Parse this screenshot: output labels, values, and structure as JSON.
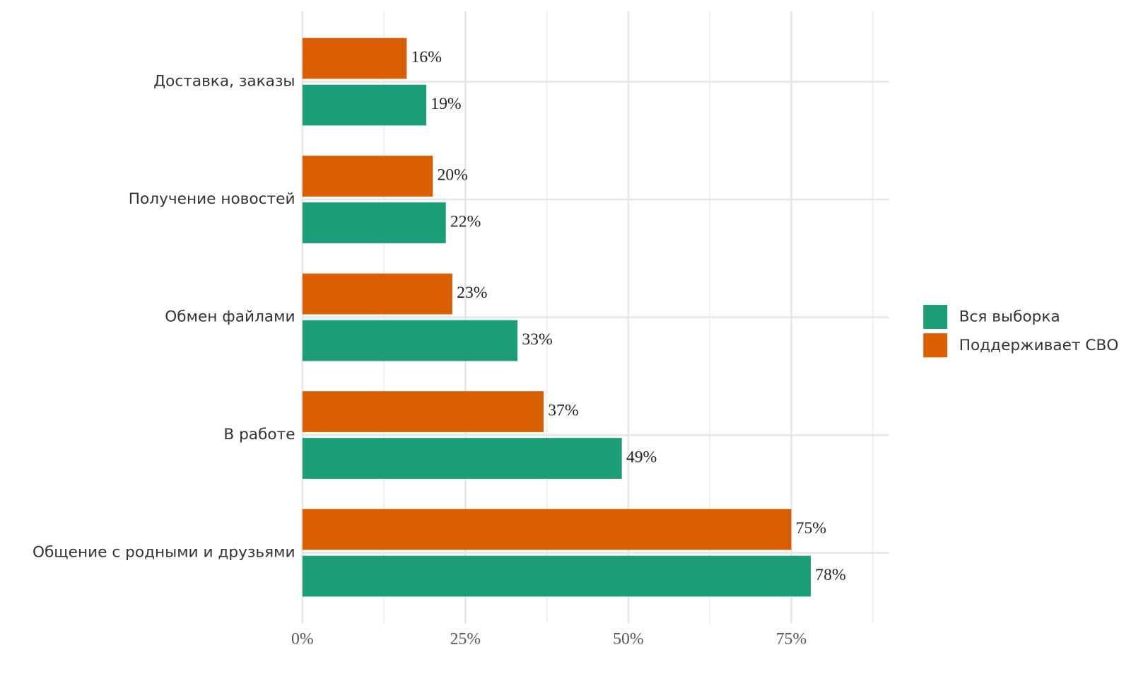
{
  "chart_data": {
    "type": "bar",
    "orientation": "horizontal",
    "categories": [
      "Доставка, заказы",
      "Получение новостей",
      "Обмен файлами",
      "В работе",
      "Общение с родными и друзьями"
    ],
    "series": [
      {
        "name": "Поддерживает СВО",
        "color": "#d95f02",
        "values": [
          16,
          20,
          23,
          37,
          75
        ],
        "value_labels": [
          "16%",
          "20%",
          "23%",
          "37%",
          "75%"
        ]
      },
      {
        "name": "Вся выборка",
        "color": "#1b9e77",
        "values": [
          19,
          22,
          33,
          49,
          78
        ],
        "value_labels": [
          "19%",
          "22%",
          "33%",
          "49%",
          "78%"
        ]
      }
    ],
    "xlim": [
      0,
      90
    ],
    "xticks": [
      {
        "value": 0,
        "label": "0%"
      },
      {
        "value": 25,
        "label": "25%"
      },
      {
        "value": 50,
        "label": "50%"
      },
      {
        "value": 75,
        "label": "75%"
      }
    ],
    "minor_xticks": [
      12.5,
      37.5,
      62.5,
      87.5
    ],
    "grid": true,
    "legend": "right"
  }
}
